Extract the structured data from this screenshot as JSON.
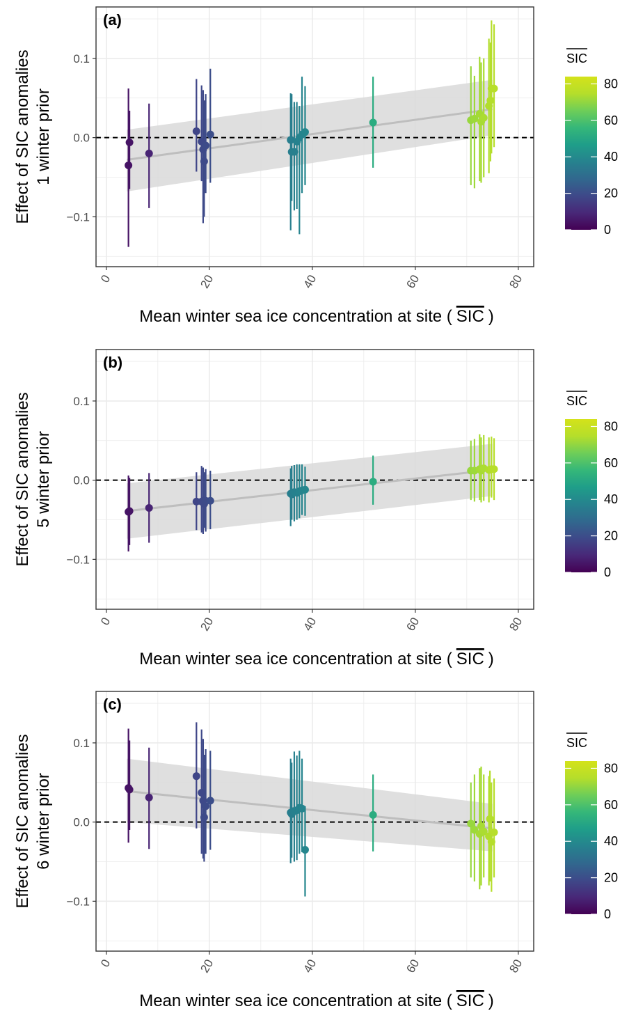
{
  "chart_data": [
    {
      "type": "scatter",
      "panel_label": "(a)",
      "ylabel_lines": [
        "Effect of SIC anomalies",
        "1 winter prior"
      ],
      "xlabel": "Mean winter sea ice concentration at site (",
      "xlabel_sic": "SIC",
      "xlabel_end": ")",
      "xlim": [
        -2,
        83
      ],
      "ylim": [
        -0.163,
        0.165
      ],
      "x_ticks": [
        "0",
        "20",
        "40",
        "60",
        "80"
      ],
      "y_ticks": [
        "-0.1",
        "0.0",
        "0.1"
      ],
      "trend": {
        "x": [
          4,
          75
        ],
        "y": [
          -0.028,
          0.036
        ],
        "lower": [
          -0.068,
          0.003
        ],
        "upper": [
          0.01,
          0.073
        ]
      },
      "points": [
        {
          "x": 4.3,
          "y": -0.035,
          "lo": -0.138,
          "hi": 0.062
        },
        {
          "x": 4.5,
          "y": -0.006,
          "lo": -0.065,
          "hi": 0.034
        },
        {
          "x": 8.3,
          "y": -0.02,
          "lo": -0.089,
          "hi": 0.043
        },
        {
          "x": 17.5,
          "y": 0.008,
          "lo": -0.043,
          "hi": 0.074
        },
        {
          "x": 18.5,
          "y": -0.005,
          "lo": -0.055,
          "hi": 0.066
        },
        {
          "x": 18.8,
          "y": -0.015,
          "lo": -0.108,
          "hi": 0.06
        },
        {
          "x": 19.0,
          "y": -0.03,
          "lo": -0.1,
          "hi": 0.047
        },
        {
          "x": 19.3,
          "y": -0.01,
          "lo": -0.07,
          "hi": 0.055
        },
        {
          "x": 20.2,
          "y": 0.004,
          "lo": -0.057,
          "hi": 0.087
        },
        {
          "x": 35.8,
          "y": -0.003,
          "lo": -0.117,
          "hi": 0.056
        },
        {
          "x": 36.0,
          "y": -0.018,
          "lo": -0.08,
          "hi": 0.055
        },
        {
          "x": 36.5,
          "y": -0.018,
          "lo": -0.092,
          "hi": 0.045
        },
        {
          "x": 37.0,
          "y": -0.005,
          "lo": -0.09,
          "hi": 0.045
        },
        {
          "x": 37.5,
          "y": 0.0,
          "lo": -0.122,
          "hi": 0.04
        },
        {
          "x": 38.0,
          "y": 0.004,
          "lo": -0.07,
          "hi": 0.077
        },
        {
          "x": 38.6,
          "y": 0.007,
          "lo": -0.06,
          "hi": 0.065
        },
        {
          "x": 51.8,
          "y": 0.019,
          "lo": -0.038,
          "hi": 0.077
        },
        {
          "x": 70.8,
          "y": 0.022,
          "lo": -0.06,
          "hi": 0.09
        },
        {
          "x": 71.5,
          "y": 0.024,
          "lo": -0.064,
          "hi": 0.078
        },
        {
          "x": 72.5,
          "y": 0.03,
          "lo": -0.055,
          "hi": 0.102
        },
        {
          "x": 72.8,
          "y": 0.02,
          "lo": -0.057,
          "hi": 0.095
        },
        {
          "x": 73.3,
          "y": 0.025,
          "lo": -0.05,
          "hi": 0.1
        },
        {
          "x": 74.3,
          "y": 0.04,
          "lo": -0.045,
          "hi": 0.125
        },
        {
          "x": 74.8,
          "y": 0.062,
          "lo": -0.02,
          "hi": 0.148
        },
        {
          "x": 75.3,
          "y": 0.062,
          "lo": -0.012,
          "hi": 0.143
        },
        {
          "x": 74.6,
          "y": 0.047,
          "lo": -0.03,
          "hi": 0.12
        }
      ]
    },
    {
      "type": "scatter",
      "panel_label": "(b)",
      "ylabel_lines": [
        "Effect of SIC anomalies",
        "5 winter prior"
      ],
      "xlabel": "Mean winter sea ice concentration at site (",
      "xlabel_sic": "SIC",
      "xlabel_end": ")",
      "xlim": [
        -2,
        83
      ],
      "ylim": [
        -0.163,
        0.165
      ],
      "x_ticks": [
        "0",
        "20",
        "40",
        "60",
        "80"
      ],
      "y_ticks": [
        "-0.1",
        "0.0",
        "0.1"
      ],
      "trend": {
        "x": [
          4,
          75
        ],
        "y": [
          -0.039,
          0.013
        ],
        "lower": [
          -0.074,
          -0.02
        ],
        "upper": [
          -0.004,
          0.046
        ]
      },
      "points": [
        {
          "x": 4.3,
          "y": -0.04,
          "lo": -0.09,
          "hi": 0.006
        },
        {
          "x": 4.5,
          "y": -0.039,
          "lo": -0.082,
          "hi": 0.003
        },
        {
          "x": 8.3,
          "y": -0.035,
          "lo": -0.079,
          "hi": 0.009
        },
        {
          "x": 17.5,
          "y": -0.027,
          "lo": -0.063,
          "hi": 0.01
        },
        {
          "x": 18.5,
          "y": -0.027,
          "lo": -0.066,
          "hi": 0.018
        },
        {
          "x": 18.8,
          "y": -0.026,
          "lo": -0.068,
          "hi": 0.016
        },
        {
          "x": 19.0,
          "y": -0.03,
          "lo": -0.06,
          "hi": 0.01
        },
        {
          "x": 19.3,
          "y": -0.026,
          "lo": -0.065,
          "hi": 0.014
        },
        {
          "x": 20.2,
          "y": -0.026,
          "lo": -0.062,
          "hi": 0.012
        },
        {
          "x": 35.8,
          "y": -0.017,
          "lo": -0.058,
          "hi": 0.015
        },
        {
          "x": 36.0,
          "y": -0.018,
          "lo": -0.05,
          "hi": 0.018
        },
        {
          "x": 36.5,
          "y": -0.015,
          "lo": -0.052,
          "hi": 0.019
        },
        {
          "x": 37.0,
          "y": -0.016,
          "lo": -0.05,
          "hi": 0.02
        },
        {
          "x": 37.5,
          "y": -0.014,
          "lo": -0.048,
          "hi": 0.02
        },
        {
          "x": 38.0,
          "y": -0.013,
          "lo": -0.044,
          "hi": 0.02
        },
        {
          "x": 38.6,
          "y": -0.012,
          "lo": -0.045,
          "hi": 0.017
        },
        {
          "x": 51.8,
          "y": -0.002,
          "lo": -0.031,
          "hi": 0.031
        },
        {
          "x": 70.8,
          "y": 0.012,
          "lo": -0.025,
          "hi": 0.05
        },
        {
          "x": 71.5,
          "y": 0.012,
          "lo": -0.027,
          "hi": 0.052
        },
        {
          "x": 72.5,
          "y": 0.014,
          "lo": -0.025,
          "hi": 0.058
        },
        {
          "x": 72.8,
          "y": 0.012,
          "lo": -0.028,
          "hi": 0.054
        },
        {
          "x": 73.3,
          "y": 0.015,
          "lo": -0.026,
          "hi": 0.057
        },
        {
          "x": 74.3,
          "y": 0.013,
          "lo": -0.028,
          "hi": 0.054
        },
        {
          "x": 74.8,
          "y": 0.014,
          "lo": -0.022,
          "hi": 0.055
        },
        {
          "x": 75.3,
          "y": 0.014,
          "lo": -0.025,
          "hi": 0.053
        }
      ]
    },
    {
      "type": "scatter",
      "panel_label": "(c)",
      "ylabel_lines": [
        "Effect of SIC anomalies",
        "6 winter prior"
      ],
      "xlabel": "Mean winter sea ice concentration at site (",
      "xlabel_sic": "SIC",
      "xlabel_end": ")",
      "xlim": [
        -2,
        83
      ],
      "ylim": [
        -0.163,
        0.165
      ],
      "x_ticks": [
        "0",
        "20",
        "40",
        "60",
        "80"
      ],
      "y_ticks": [
        "-0.1",
        "0.0",
        "0.1"
      ],
      "trend": {
        "x": [
          4,
          75
        ],
        "y": [
          0.039,
          -0.008
        ],
        "lower": [
          0.0,
          -0.037
        ],
        "upper": [
          0.08,
          0.023
        ]
      },
      "points": [
        {
          "x": 4.3,
          "y": 0.043,
          "lo": -0.026,
          "hi": 0.118
        },
        {
          "x": 4.5,
          "y": 0.041,
          "lo": -0.01,
          "hi": 0.103
        },
        {
          "x": 8.3,
          "y": 0.031,
          "lo": -0.034,
          "hi": 0.094
        },
        {
          "x": 17.5,
          "y": 0.058,
          "lo": -0.008,
          "hi": 0.126
        },
        {
          "x": 18.5,
          "y": 0.037,
          "lo": -0.04,
          "hi": 0.117
        },
        {
          "x": 18.8,
          "y": 0.027,
          "lo": -0.046,
          "hi": 0.105
        },
        {
          "x": 19.0,
          "y": 0.006,
          "lo": -0.05,
          "hi": 0.085
        },
        {
          "x": 19.3,
          "y": 0.02,
          "lo": -0.04,
          "hi": 0.092
        },
        {
          "x": 20.2,
          "y": 0.027,
          "lo": -0.035,
          "hi": 0.09
        },
        {
          "x": 35.8,
          "y": 0.012,
          "lo": -0.052,
          "hi": 0.08
        },
        {
          "x": 36.0,
          "y": 0.01,
          "lo": -0.045,
          "hi": 0.075
        },
        {
          "x": 36.5,
          "y": 0.014,
          "lo": -0.05,
          "hi": 0.089
        },
        {
          "x": 37.0,
          "y": 0.015,
          "lo": -0.048,
          "hi": 0.084
        },
        {
          "x": 37.5,
          "y": 0.018,
          "lo": -0.04,
          "hi": 0.09
        },
        {
          "x": 38.0,
          "y": 0.017,
          "lo": -0.038,
          "hi": 0.08
        },
        {
          "x": 38.6,
          "y": -0.035,
          "lo": -0.094,
          "hi": 0.02
        },
        {
          "x": 51.8,
          "y": 0.009,
          "lo": -0.037,
          "hi": 0.06
        },
        {
          "x": 70.8,
          "y": -0.002,
          "lo": -0.07,
          "hi": 0.05
        },
        {
          "x": 71.5,
          "y": -0.01,
          "lo": -0.075,
          "hi": 0.06
        },
        {
          "x": 72.5,
          "y": -0.015,
          "lo": -0.085,
          "hi": 0.068
        },
        {
          "x": 72.8,
          "y": -0.005,
          "lo": -0.08,
          "hi": 0.07
        },
        {
          "x": 73.3,
          "y": -0.012,
          "lo": -0.07,
          "hi": 0.06
        },
        {
          "x": 74.3,
          "y": -0.018,
          "lo": -0.08,
          "hi": 0.058
        },
        {
          "x": 74.8,
          "y": -0.025,
          "lo": -0.088,
          "hi": 0.05
        },
        {
          "x": 75.3,
          "y": -0.013,
          "lo": -0.07,
          "hi": 0.055
        },
        {
          "x": 74.5,
          "y": 0.004,
          "lo": -0.075,
          "hi": 0.065
        }
      ]
    }
  ],
  "legend": {
    "title": "SIC",
    "ticks": [
      "0",
      "20",
      "40",
      "60",
      "80"
    ],
    "range": [
      0,
      84
    ],
    "scale": "viridis"
  },
  "colors": {
    "trend_line": "#bebebe",
    "ribbon": "#d9d9d9",
    "grid_major": "#ebebeb",
    "reference_line": "#000000",
    "viridis_stops": [
      "#440154",
      "#482878",
      "#3e4989",
      "#31688e",
      "#26828e",
      "#1f9e89",
      "#35b779",
      "#6ece58",
      "#b5de2b",
      "#d4e21a"
    ]
  }
}
